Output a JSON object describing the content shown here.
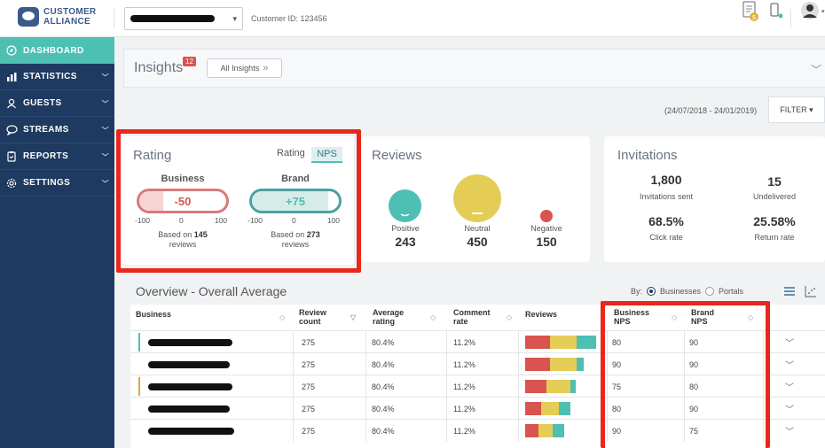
{
  "header": {
    "logo_line1": "CUSTOMER",
    "logo_line2": "ALLIANCE",
    "customer_id": "Customer ID: 123456",
    "selector_caret": "▾"
  },
  "sidebar": {
    "items": [
      {
        "label": "DASHBOARD",
        "icon": "compass-icon",
        "active": true
      },
      {
        "label": "STATISTICS",
        "icon": "bar-chart-icon"
      },
      {
        "label": "GUESTS",
        "icon": "user-icon"
      },
      {
        "label": "STREAMS",
        "icon": "chat-icon"
      },
      {
        "label": "REPORTS",
        "icon": "clipboard-icon"
      },
      {
        "label": "SETTINGS",
        "icon": "gear-icon"
      }
    ]
  },
  "insights": {
    "title": "Insights",
    "badge": "12",
    "all_label": "All Insights"
  },
  "date_range": "(24/07/2018 - 24/01/2019)",
  "filter_label": "FILTER ▾",
  "rating": {
    "title": "Rating",
    "toggle_rating": "Rating",
    "toggle_nps": "NPS",
    "business": {
      "label": "Business",
      "value": "-50",
      "numeric": -50,
      "min": "-100",
      "mid": "0",
      "max": "100",
      "based_prefix": "Based on",
      "count": "145",
      "suffix": "reviews"
    },
    "brand": {
      "label": "Brand",
      "value": "+75",
      "numeric": 75,
      "min": "-100",
      "mid": "0",
      "max": "100",
      "based_prefix": "Based on",
      "count": "273",
      "suffix": "reviews"
    }
  },
  "reviews": {
    "title": "Reviews",
    "positive": {
      "label": "Positive",
      "count": "243"
    },
    "neutral": {
      "label": "Neutral",
      "count": "450"
    },
    "negative": {
      "label": "Negative",
      "count": "150"
    }
  },
  "invitations": {
    "title": "Invitations",
    "sent": {
      "value": "1,800",
      "label": "Invitations sent"
    },
    "undelivered": {
      "value": "15",
      "label": "Undelivered"
    },
    "click": {
      "value": "68.5%",
      "label": "Click rate"
    },
    "return": {
      "value": "25.58%",
      "label": "Return rate"
    }
  },
  "overview": {
    "title": "Overview - Overall Average",
    "by_label": "By:",
    "opt_businesses": "Businesses",
    "opt_portals": "Portals",
    "columns": {
      "business": "Business",
      "review_count_1": "Review",
      "review_count_2": "count",
      "avg_1": "Average",
      "avg_2": "rating",
      "comment_1": "Comment",
      "comment_2": "rate",
      "reviews": "Reviews",
      "bnps_1": "Business",
      "bnps_2": "NPS",
      "brnps_1": "Brand",
      "brnps_2": "NPS"
    },
    "rows": [
      {
        "count": "275",
        "avg": "80.4%",
        "comment": "11.2%",
        "bnps": "80",
        "brnps": "90",
        "bar": [
          28,
          30,
          22
        ],
        "marker": "#4dbfb3",
        "redact_w": 95
      },
      {
        "count": "275",
        "avg": "80.4%",
        "comment": "11.2%",
        "bnps": "90",
        "brnps": "90",
        "bar": [
          28,
          30,
          8
        ],
        "marker": "",
        "redact_w": 92
      },
      {
        "count": "275",
        "avg": "80.4%",
        "comment": "11.2%",
        "bnps": "75",
        "brnps": "80",
        "bar": [
          24,
          27,
          6
        ],
        "marker": "#e0a93a",
        "redact_w": 95
      },
      {
        "count": "275",
        "avg": "80.4%",
        "comment": "11.2%",
        "bnps": "80",
        "brnps": "90",
        "bar": [
          18,
          20,
          13
        ],
        "marker": "",
        "redact_w": 92
      },
      {
        "count": "275",
        "avg": "80.4%",
        "comment": "11.2%",
        "bnps": "90",
        "brnps": "75",
        "bar": [
          15,
          16,
          13
        ],
        "marker": "",
        "redact_w": 97
      }
    ]
  },
  "colors": {
    "sidebar": "#1e3a60",
    "accent": "#4dbfb3",
    "negative_red": "#d9534f",
    "neutral_yellow": "#e5cc56",
    "highlight": "#e8281b"
  }
}
